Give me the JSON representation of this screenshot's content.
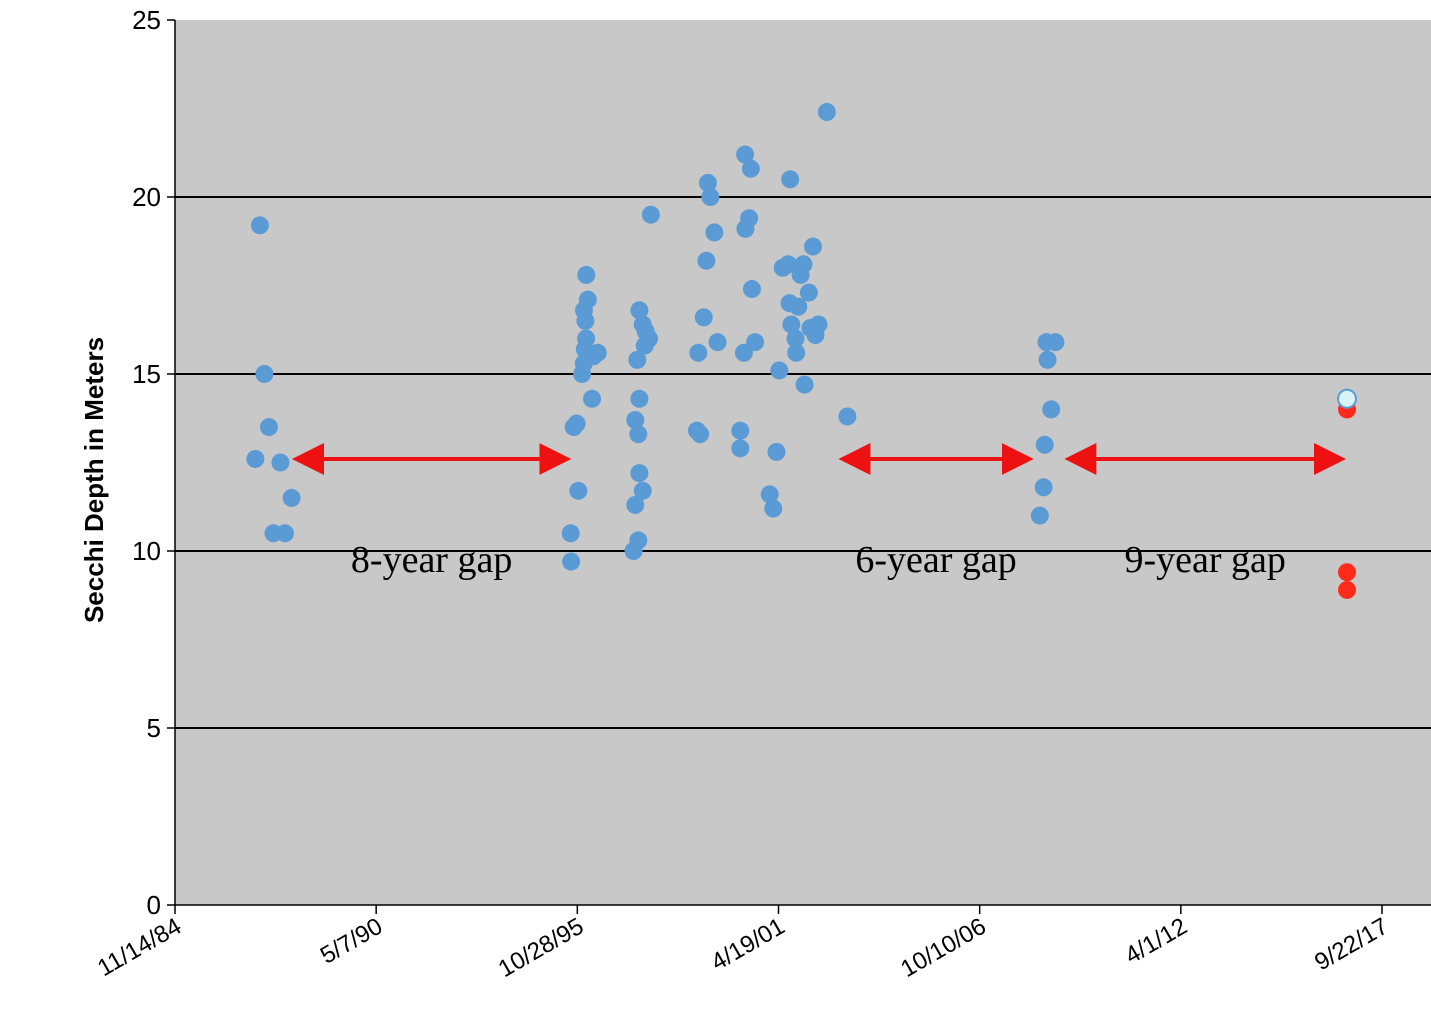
{
  "chart_data": {
    "type": "scatter",
    "title": "",
    "xlabel": "",
    "ylabel": "Secchi Depth in Meters",
    "ylim": [
      0,
      25
    ],
    "yticks": [
      "0",
      "5",
      "10",
      "15",
      "20",
      "25"
    ],
    "xlim": [
      "1984-11-14",
      "2019-03-24"
    ],
    "xticks": [
      {
        "date": "1984-11-14",
        "label": "11/14/84"
      },
      {
        "date": "1990-05-07",
        "label": "5/7/90"
      },
      {
        "date": "1995-10-28",
        "label": "10/28/95"
      },
      {
        "date": "2001-04-19",
        "label": "4/19/01"
      },
      {
        "date": "2006-10-10",
        "label": "10/10/06"
      },
      {
        "date": "2012-04-01",
        "label": "4/1/12"
      },
      {
        "date": "2017-09-22",
        "label": "9/22/17"
      }
    ],
    "grid": "horizontal",
    "legend": "none",
    "colors": {
      "plot_bg": "#c8c8c8",
      "blue": "#5b9bd5",
      "red": "#ff2a1a",
      "light": "#d8f4f4",
      "arrow": "#ee1111"
    },
    "series": [
      {
        "color": "#5b9bd5",
        "points": [
          [
            "1987-03-08",
            19.2
          ],
          [
            "1987-01-22",
            12.6
          ],
          [
            "1987-04-22",
            15.0
          ],
          [
            "1987-06-06",
            13.5
          ],
          [
            "1987-07-21",
            10.5
          ],
          [
            "1987-11-12",
            10.5
          ],
          [
            "1987-09-28",
            12.5
          ],
          [
            "1988-01-17",
            11.5
          ],
          [
            "1995-08-27",
            9.7
          ],
          [
            "1995-08-23",
            10.5
          ],
          [
            "1995-09-22",
            13.5
          ],
          [
            "1995-10-21",
            13.6
          ],
          [
            "1995-11-07",
            11.7
          ],
          [
            "1995-12-14",
            15.0
          ],
          [
            "1995-12-31",
            15.3
          ],
          [
            "1996-01-10",
            15.7
          ],
          [
            "1996-01-23",
            16.0
          ],
          [
            "1996-01-16",
            16.5
          ],
          [
            "1996-01-02",
            16.8
          ],
          [
            "1996-02-09",
            17.1
          ],
          [
            "1996-01-25",
            17.8
          ],
          [
            "1996-04-04",
            15.5
          ],
          [
            "1996-03-22",
            14.3
          ],
          [
            "1996-05-18",
            15.6
          ],
          [
            "1997-05-09",
            10.0
          ],
          [
            "1997-06-25",
            10.3
          ],
          [
            "1997-05-26",
            11.3
          ],
          [
            "1997-08-08",
            11.7
          ],
          [
            "1997-07-06",
            12.2
          ],
          [
            "1997-06-25",
            13.3
          ],
          [
            "1997-05-26",
            13.7
          ],
          [
            "1997-07-06",
            14.3
          ],
          [
            "1997-06-15",
            15.4
          ],
          [
            "1997-08-28",
            15.8
          ],
          [
            "1997-09-07",
            16.2
          ],
          [
            "1997-08-08",
            16.4
          ],
          [
            "1997-07-06",
            16.8
          ],
          [
            "1997-10-28",
            19.5
          ],
          [
            "1997-10-10",
            16.0
          ],
          [
            "1999-01-29",
            13.4
          ],
          [
            "1999-03-02",
            13.3
          ],
          [
            "1999-02-12",
            15.6
          ],
          [
            "1999-04-07",
            16.6
          ],
          [
            "1999-05-03",
            18.2
          ],
          [
            "1999-05-18",
            20.4
          ],
          [
            "1999-06-12",
            20.0
          ],
          [
            "1999-07-21",
            19.0
          ],
          [
            "1999-08-22",
            15.9
          ],
          [
            "2000-04-04",
            12.9
          ],
          [
            "2000-04-04",
            13.4
          ],
          [
            "2000-05-10",
            15.6
          ],
          [
            "2000-05-25",
            19.1
          ],
          [
            "2000-07-01",
            19.4
          ],
          [
            "2000-07-29",
            17.4
          ],
          [
            "2000-08-29",
            15.9
          ],
          [
            "2000-05-22",
            21.2
          ],
          [
            "2000-07-18",
            20.8
          ],
          [
            "2001-01-22",
            11.6
          ],
          [
            "2001-02-26",
            11.2
          ],
          [
            "2001-03-30",
            12.8
          ],
          [
            "2001-04-27",
            15.1
          ],
          [
            "2001-05-31",
            18.0
          ],
          [
            "2001-07-24",
            18.1
          ],
          [
            "2001-08-13",
            20.5
          ],
          [
            "2001-08-07",
            17.0
          ],
          [
            "2001-08-25",
            16.4
          ],
          [
            "2001-10-05",
            16.0
          ],
          [
            "2001-10-12",
            15.6
          ],
          [
            "2001-11-02",
            16.9
          ],
          [
            "2001-11-25",
            17.8
          ],
          [
            "2001-12-23",
            18.1
          ],
          [
            "2002-01-03",
            14.7
          ],
          [
            "2002-02-15",
            17.3
          ],
          [
            "2002-03-02",
            16.3
          ],
          [
            "2002-03-28",
            18.6
          ],
          [
            "2002-04-09",
            16.3
          ],
          [
            "2002-04-21",
            16.1
          ],
          [
            "2002-05-21",
            16.4
          ],
          [
            "2002-08-13",
            22.4
          ],
          [
            "2003-03-05",
            13.8
          ],
          [
            "2008-05-30",
            11.0
          ],
          [
            "2008-07-07",
            11.8
          ],
          [
            "2008-07-18",
            13.0
          ],
          [
            "2008-08-15",
            15.4
          ],
          [
            "2008-08-04",
            15.9
          ],
          [
            "2008-09-20",
            14.0
          ],
          [
            "2008-11-01",
            15.9
          ]
        ]
      },
      {
        "color": "#ff2a1a",
        "points": [
          [
            "2016-10-09",
            14.0
          ],
          [
            "2016-10-09",
            9.4
          ],
          [
            "2016-10-09",
            8.9
          ]
        ]
      },
      {
        "color": "#d8f4f4",
        "points": [
          [
            "2016-10-09",
            14.3
          ]
        ]
      }
    ],
    "annotations": [
      {
        "text": "8-year gap",
        "arrow": [
          "1988-03-01",
          "1995-07-20"
        ],
        "arrow_y": 12.6
      },
      {
        "text": "6-year gap",
        "arrow": [
          "2003-01-15",
          "2008-02-20"
        ],
        "arrow_y": 12.6
      },
      {
        "text": "9-year gap",
        "arrow": [
          "2009-03-10",
          "2016-08-20"
        ],
        "arrow_y": 12.6
      }
    ]
  }
}
